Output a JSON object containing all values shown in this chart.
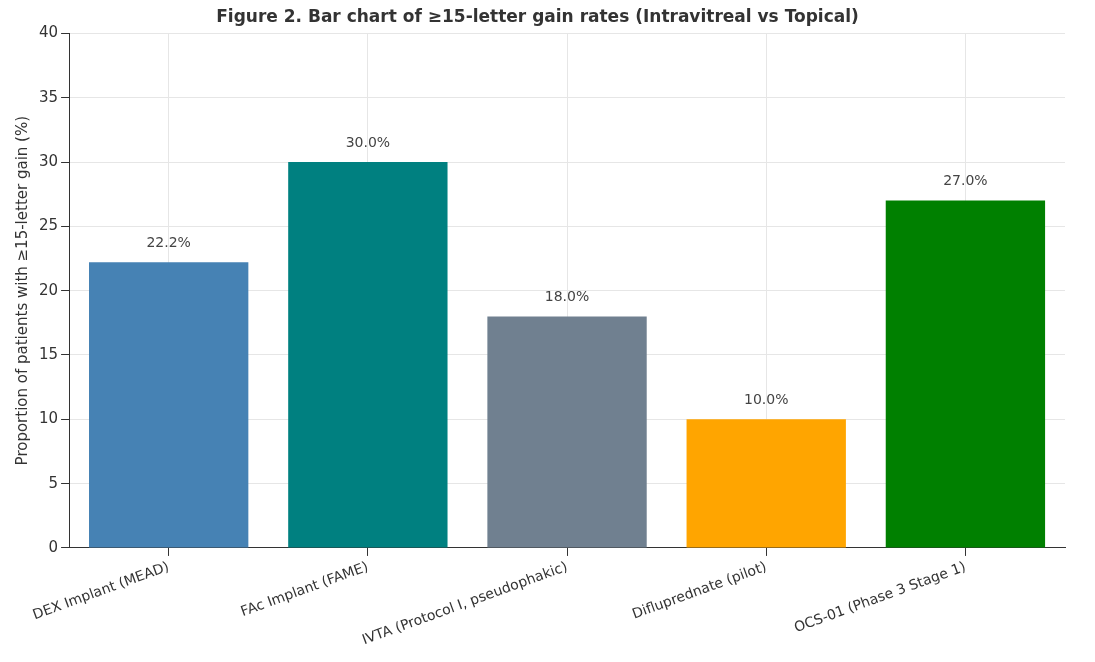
{
  "chart_data": {
    "type": "bar",
    "title": "Figure 2. Bar chart of ≥15-letter gain rates (Intravitreal vs Topical)",
    "ylabel": "Proportion of patients with ≥15-letter gain (%)",
    "categories": [
      "DEX Implant (MEAD)",
      "FAc Implant (FAME)",
      "IVTA (Protocol I, pseudophakic)",
      "Difluprednate (pilot)",
      "OCS-01 (Phase 3 Stage 1)"
    ],
    "values": [
      22.2,
      30.0,
      18.0,
      10.0,
      27.0
    ],
    "colors": [
      "#4682b4",
      "#008080",
      "#708090",
      "#ffa500",
      "#008000"
    ],
    "value_labels": [
      "22.2%",
      "30.0%",
      "18.0%",
      "10.0%",
      "27.0%"
    ],
    "ylim": [
      0,
      40
    ],
    "yticks": [
      0,
      5,
      10,
      15,
      20,
      25,
      30,
      35,
      40
    ],
    "grid": true
  }
}
